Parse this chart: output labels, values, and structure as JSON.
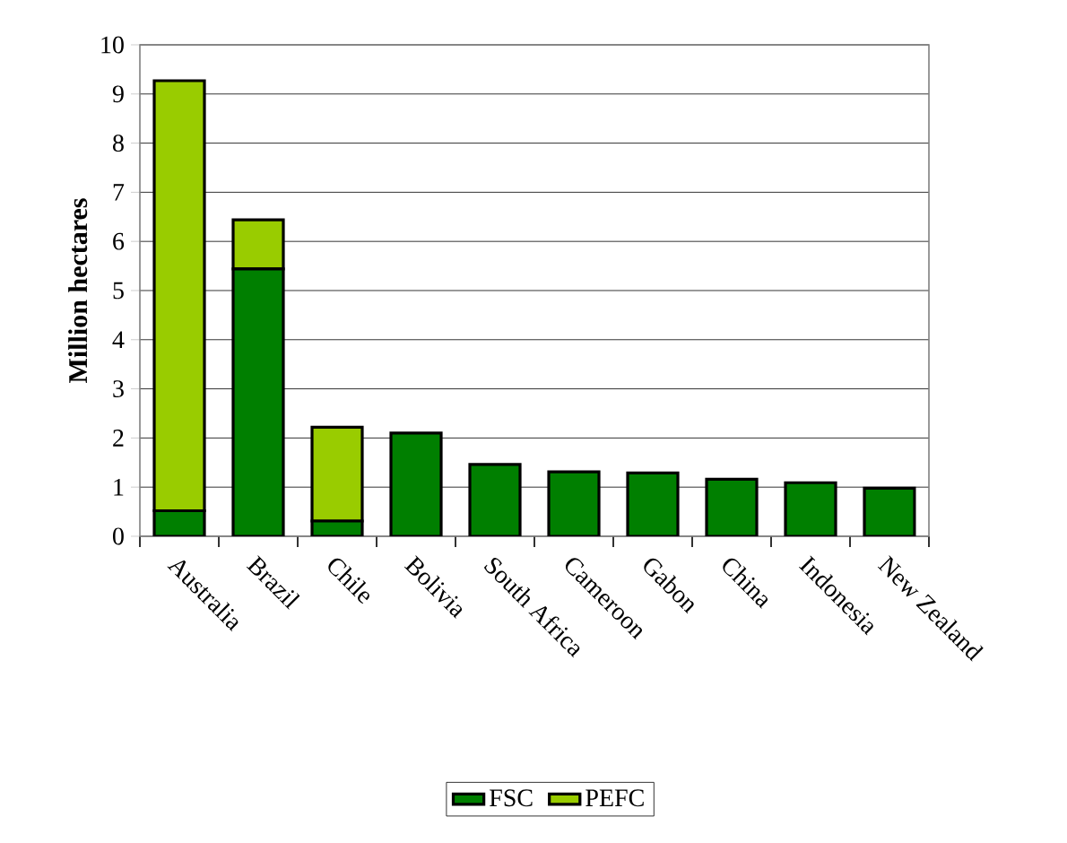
{
  "chart_data": {
    "type": "bar",
    "stacked": true,
    "ylabel": "Million hectares",
    "categories": [
      "Australia",
      "Brazil",
      "Chile",
      "Bolivia",
      "South Africa",
      "Cameroon",
      "Gabon",
      "China",
      "Indonesia",
      "New Zealand"
    ],
    "series": [
      {
        "name": "FSC",
        "color": "#007f00",
        "values": [
          0.52,
          5.44,
          0.31,
          2.1,
          1.46,
          1.31,
          1.29,
          1.16,
          1.09,
          0.98
        ]
      },
      {
        "name": "PEFC",
        "color": "#99cc00",
        "values": [
          8.75,
          1.0,
          1.91,
          null,
          null,
          null,
          null,
          null,
          null,
          null
        ]
      }
    ],
    "ylim": [
      0,
      10
    ],
    "yticks": [
      0,
      1,
      2,
      3,
      4,
      5,
      6,
      7,
      8,
      9,
      10
    ],
    "grid": "y",
    "legend": "bottom"
  }
}
